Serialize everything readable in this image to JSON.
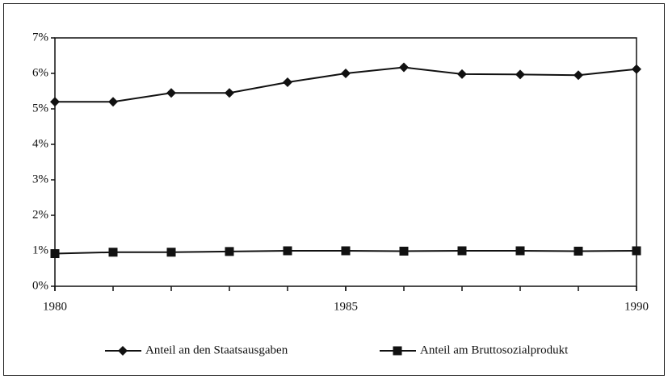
{
  "chart_data": {
    "type": "line",
    "x": [
      1980,
      1981,
      1982,
      1983,
      1984,
      1985,
      1986,
      1987,
      1988,
      1989,
      1990
    ],
    "series": [
      {
        "name": "Anteil an den Staatsausgaben",
        "color": "#111111",
        "marker": "diamond",
        "values": [
          5.2,
          5.2,
          5.45,
          5.45,
          5.75,
          6.0,
          6.17,
          5.98,
          5.97,
          5.95,
          6.12
        ]
      },
      {
        "name": "Anteil am Bruttosozialprodukt",
        "color": "#111111",
        "marker": "square",
        "values": [
          0.92,
          0.96,
          0.96,
          0.98,
          1.0,
          1.0,
          0.99,
          1.0,
          1.0,
          0.99,
          1.0
        ]
      }
    ],
    "xlim": [
      1980,
      1990
    ],
    "xticks": [
      1980,
      1985,
      1990
    ],
    "ylim": [
      0,
      7
    ],
    "yticks": [
      {
        "value": 0,
        "label": "0%"
      },
      {
        "value": 1,
        "label": "1%"
      },
      {
        "value": 2,
        "label": "2%"
      },
      {
        "value": 3,
        "label": "3%"
      },
      {
        "value": 4,
        "label": "4%"
      },
      {
        "value": 5,
        "label": "5%"
      },
      {
        "value": 6,
        "label": "6%"
      },
      {
        "value": 7,
        "label": "7%"
      }
    ],
    "grid": false,
    "legend": "bottom"
  }
}
